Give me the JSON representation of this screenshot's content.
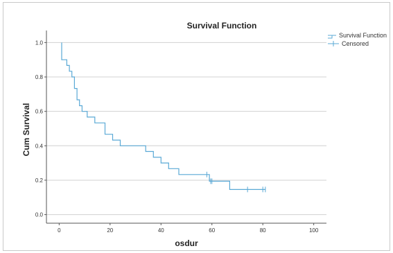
{
  "chart_data": {
    "type": "line",
    "title": "Survival Function",
    "xlabel": "osdur",
    "ylabel": "Cum Survival",
    "xlim": [
      -5,
      105
    ],
    "ylim": [
      -0.05,
      1.07
    ],
    "x_ticks": [
      0,
      20,
      40,
      60,
      80,
      100
    ],
    "y_ticks": [
      0.0,
      0.2,
      0.4,
      0.6,
      0.8,
      1.0
    ],
    "y_tick_labels": [
      "0.0",
      "0.2",
      "0.4",
      "0.6",
      "0.8",
      "1.0"
    ],
    "x_tick_labels": [
      "0",
      "20",
      "40",
      "60",
      "80",
      "100"
    ],
    "grid": "horizontal",
    "legend_position": "top-right",
    "line_color": "#5aa9d6",
    "series": [
      {
        "name": "Survival Function",
        "type": "step",
        "points": [
          [
            1,
            1.0
          ],
          [
            1,
            0.9
          ],
          [
            3,
            0.9
          ],
          [
            3,
            0.867
          ],
          [
            4,
            0.867
          ],
          [
            4,
            0.833
          ],
          [
            5,
            0.833
          ],
          [
            5,
            0.8
          ],
          [
            6,
            0.8
          ],
          [
            6,
            0.733
          ],
          [
            7,
            0.733
          ],
          [
            7,
            0.667
          ],
          [
            8,
            0.667
          ],
          [
            8,
            0.633
          ],
          [
            9,
            0.633
          ],
          [
            9,
            0.6
          ],
          [
            11,
            0.6
          ],
          [
            11,
            0.567
          ],
          [
            14,
            0.567
          ],
          [
            14,
            0.533
          ],
          [
            18,
            0.533
          ],
          [
            18,
            0.467
          ],
          [
            21,
            0.467
          ],
          [
            21,
            0.433
          ],
          [
            24,
            0.433
          ],
          [
            24,
            0.4
          ],
          [
            34,
            0.4
          ],
          [
            34,
            0.367
          ],
          [
            37,
            0.367
          ],
          [
            37,
            0.333
          ],
          [
            40,
            0.333
          ],
          [
            40,
            0.3
          ],
          [
            43,
            0.3
          ],
          [
            43,
            0.267
          ],
          [
            47,
            0.267
          ],
          [
            47,
            0.233
          ],
          [
            59,
            0.233
          ],
          [
            59,
            0.194
          ],
          [
            67,
            0.194
          ],
          [
            67,
            0.146
          ],
          [
            81,
            0.146
          ]
        ]
      },
      {
        "name": "Censored",
        "type": "censor-marks",
        "points": [
          [
            58,
            0.233
          ],
          [
            59.5,
            0.194
          ],
          [
            60,
            0.194
          ],
          [
            74,
            0.146
          ],
          [
            80,
            0.146
          ],
          [
            81,
            0.146
          ]
        ]
      }
    ]
  }
}
